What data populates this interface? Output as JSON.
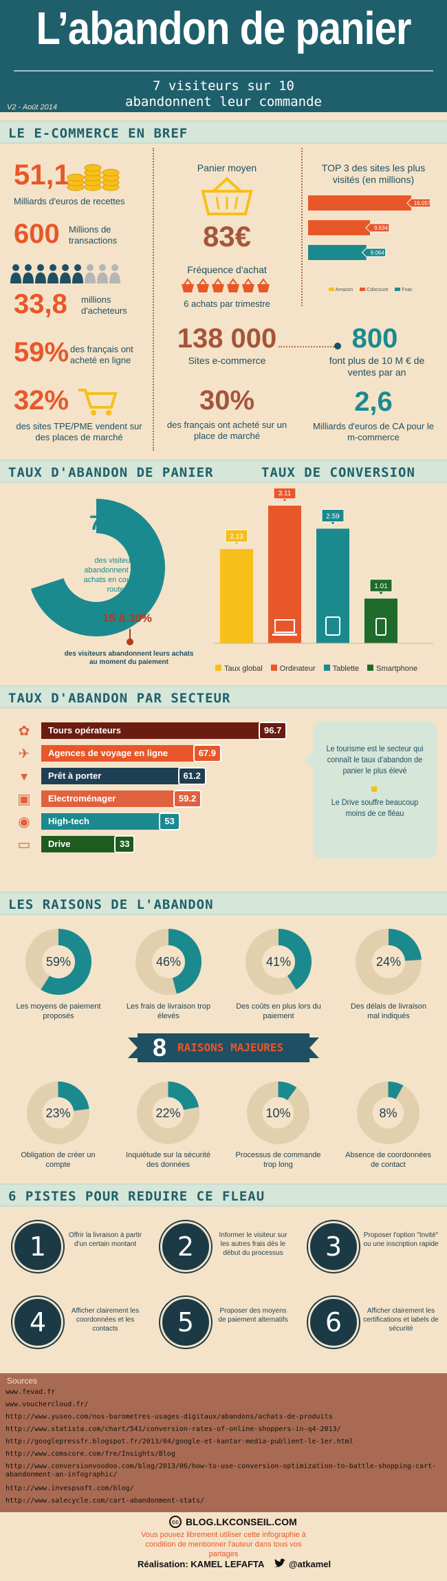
{
  "colors": {
    "teal": "#1b8a8f",
    "dark_teal": "#1f4f62",
    "orange": "#e8572a",
    "yellow": "#f7bf1a",
    "brown": "#a5553b",
    "beige": "#f4e3c8",
    "dark": "#1c3a46"
  },
  "header": {
    "title": "L’abandon de panier",
    "subtitle_line1": "7 visiteurs sur 10",
    "subtitle_line2": "abandonnent leur commande",
    "version": "V2 - Août 2014"
  },
  "sections": {
    "ecommerce": "LE E-COMMERCE EN BREF",
    "abandon": "TAUX D'ABANDON DE PANIER",
    "conversion": "TAUX DE CONVERSION",
    "secteur": "TAUX D'ABANDON PAR SECTEUR",
    "raisons": "LES RAISONS DE L'ABANDON",
    "pistes": "6 PISTES POUR REDUIRE CE FLEAU"
  },
  "ecommerce": {
    "recettes_value": "51,1",
    "recettes_label": "Milliards d'euros de recettes",
    "transactions_value": "600",
    "transactions_label": "Millions de transactions",
    "acheteurs_value": "33,8",
    "acheteurs_label": "millions d'acheteurs",
    "achete_value": "59%",
    "achete_label": "des français ont acheté en ligne",
    "tpe_value": "32%",
    "tpe_label": "des sites TPE/PME vendent sur des places de marché",
    "panier_label": "Panier moyen",
    "panier_value": "83€",
    "frequence_label": "Fréquence d'achat",
    "frequence_value": "6 achats par trimestre",
    "sites_value": "138 000",
    "sites_label": "Sites e-commerce",
    "place_value": "30%",
    "place_label": "des français ont acheté sur un place de marché",
    "top3_title": "TOP 3 des sites les plus visités (en millions)",
    "top3": [
      {
        "name": "Amazon",
        "value": "16.057",
        "num": 16.057,
        "color": "#e8572a"
      },
      {
        "name": "Cdiscount",
        "value": "9.634",
        "num": 9.634,
        "color": "#e8572a"
      },
      {
        "name": "Fnac",
        "value": "9.064",
        "num": 9.064,
        "color": "#1b8a8f"
      }
    ],
    "top3_legend": [
      "Amazon",
      "Cdiscount",
      "Fnac"
    ],
    "fonts_value": "800",
    "fonts_label": "font plus de 10 M € de ventes par an",
    "mcommerce_value": "2,6",
    "mcommerce_label": "Milliards d'euros de CA pour le m-commerce"
  },
  "abandon": {
    "pct": "70%",
    "pct_num": 70,
    "desc": "des visiteurs abandonnent leurs achats en cours de route",
    "range": "15 à 30%",
    "range_desc": "des visiteurs abandonnent leurs achats au moment du paiement"
  },
  "conversion": {
    "bars": [
      {
        "label": "Taux global",
        "value": "2.13",
        "num": 2.13,
        "color": "#f7bf1a"
      },
      {
        "label": "Ordinateur",
        "value": "3.11",
        "num": 3.11,
        "color": "#e8572a"
      },
      {
        "label": "Tablette",
        "value": "2.59",
        "num": 2.59,
        "color": "#1b8a8f"
      },
      {
        "label": "Smartphone",
        "value": "1.01",
        "num": 1.01,
        "color": "#1f6b2c"
      }
    ]
  },
  "secteur": {
    "rows": [
      {
        "label": "Tours opérateurs",
        "value": "96.7",
        "num": 96.7,
        "color": "#6a1c10",
        "icon": "palm-icon"
      },
      {
        "label": "Agences de voyage en ligne",
        "value": "67.9",
        "num": 67.9,
        "color": "#e8572a",
        "icon": "plane-icon"
      },
      {
        "label": "Prêt à porter",
        "value": "61.2",
        "num": 61.2,
        "color": "#1f3f52",
        "icon": "shirt-icon"
      },
      {
        "label": "Electroménager",
        "value": "59.2",
        "num": 59.2,
        "color": "#e0613e",
        "icon": "washer-icon"
      },
      {
        "label": "High-tech",
        "value": "53",
        "num": 53,
        "color": "#1b8a8f",
        "icon": "wifi-icon"
      },
      {
        "label": "Drive",
        "value": "33",
        "num": 33,
        "color": "#1f5a1f",
        "icon": "basket-icon"
      }
    ],
    "note1": "Le tourisme est le secteur qui connaît le taux d'abandon de panier le plus élevé",
    "note2": "Le Drive souffre beaucoup moins de ce fléau"
  },
  "raisons": {
    "top": [
      {
        "value": "59%",
        "num": 59,
        "label": "Les moyens de paiement proposés"
      },
      {
        "value": "46%",
        "num": 46,
        "label": "Les frais de livraison trop élevés"
      },
      {
        "value": "41%",
        "num": 41,
        "label": "Des coûts en plus lors du paiement"
      },
      {
        "value": "24%",
        "num": 24,
        "label": "Des délais de livraison mal indiqués"
      }
    ],
    "banner_num": "8",
    "banner_text": "RAISONS MAJEURES",
    "bottom": [
      {
        "value": "23%",
        "num": 23,
        "label": "Obligation de créer un compte"
      },
      {
        "value": "22%",
        "num": 22,
        "label": "Inquiétude sur la sécurité des données"
      },
      {
        "value": "10%",
        "num": 10,
        "label": "Processus de commande trop long"
      },
      {
        "value": "8%",
        "num": 8,
        "label": "Absence de coordonnées de contact"
      }
    ]
  },
  "pistes": [
    {
      "num": "1",
      "text": "Offrir la livraison à partir d'un certain montant"
    },
    {
      "num": "2",
      "text": "Informer le visiteur sur les autres frais dès le début du processus"
    },
    {
      "num": "3",
      "text": "Proposer l'option \"Invité\" ou une inscription rapide"
    },
    {
      "num": "4",
      "text": "Afficher clairement les coordonnées et les contacts"
    },
    {
      "num": "5",
      "text": "Proposer des moyens de paiement alternatifs"
    },
    {
      "num": "6",
      "text": "Afficher clairement les certifications et labels de sécurité"
    }
  ],
  "sources": {
    "title": "Sources",
    "links": [
      "www.fevad.fr",
      "www.vouchercloud.fr/",
      "http://www.yuseo.com/nos-barometres-usages-digitaux/abandons/achats-de-produits",
      "http://www.statista.com/chart/541/conversion-rates-of-online-shoppers-in-q4-2013/",
      "http://googlepressfr.blogspot.fr/2013/04/google-et-kantar-media-publient-le-1er.html",
      "http://www.comscore.com/fre/Insights/Blog",
      "http://www.conversionvoodoo.com/blog/2013/06/how-to-use-conversion-optimization-to-battle-shopping-cart-abandonment-an-infographic/",
      "http://www.invespsoft.com/blog/",
      "http://www.salecycle.com/cart-abandonment-stats/"
    ]
  },
  "footer": {
    "blog": "BLOG.LKCONSEIL.COM",
    "licence": "Vous pouvez librement utiliser cette infographie à condition de mentionner l'auteur dans tous vos partages",
    "author": "Réalisation: KAMEL LEFAFTA",
    "twitter": "@atkamel"
  }
}
